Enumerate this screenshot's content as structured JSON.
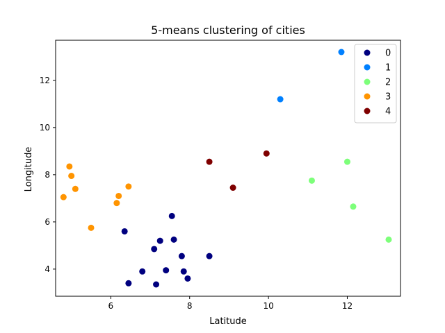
{
  "chart_data": {
    "type": "scatter",
    "title": "5-means clustering of cities",
    "xlabel": "Latitude",
    "ylabel": "Longitude",
    "xlim": [
      4.6,
      13.35
    ],
    "ylim": [
      2.85,
      13.7
    ],
    "xticks": [
      6,
      8,
      10,
      12
    ],
    "yticks": [
      4,
      6,
      8,
      10,
      12
    ],
    "grid": false,
    "legend_position": "top-right",
    "series": [
      {
        "name": "0",
        "color": "#00007f",
        "points": [
          [
            7.55,
            6.25
          ],
          [
            6.35,
            5.6
          ],
          [
            7.6,
            5.25
          ],
          [
            7.25,
            5.2
          ],
          [
            7.1,
            4.85
          ],
          [
            7.8,
            4.55
          ],
          [
            8.5,
            4.55
          ],
          [
            6.8,
            3.9
          ],
          [
            7.4,
            3.95
          ],
          [
            7.85,
            3.9
          ],
          [
            6.45,
            3.4
          ],
          [
            7.15,
            3.35
          ],
          [
            7.95,
            3.6
          ]
        ]
      },
      {
        "name": "1",
        "color": "#0080ff",
        "points": [
          [
            11.85,
            13.2
          ],
          [
            10.3,
            11.2
          ]
        ]
      },
      {
        "name": "2",
        "color": "#7dff7a",
        "points": [
          [
            11.1,
            7.75
          ],
          [
            12.0,
            8.55
          ],
          [
            12.15,
            6.65
          ],
          [
            13.05,
            5.25
          ]
        ]
      },
      {
        "name": "3",
        "color": "#ff9400",
        "points": [
          [
            4.95,
            8.35
          ],
          [
            5.0,
            7.95
          ],
          [
            5.1,
            7.4
          ],
          [
            4.8,
            7.05
          ],
          [
            6.45,
            7.5
          ],
          [
            6.2,
            7.1
          ],
          [
            6.15,
            6.8
          ],
          [
            5.5,
            5.75
          ]
        ]
      },
      {
        "name": "4",
        "color": "#7f0000",
        "points": [
          [
            8.5,
            8.55
          ],
          [
            9.95,
            8.9
          ],
          [
            9.1,
            7.45
          ]
        ]
      }
    ]
  }
}
